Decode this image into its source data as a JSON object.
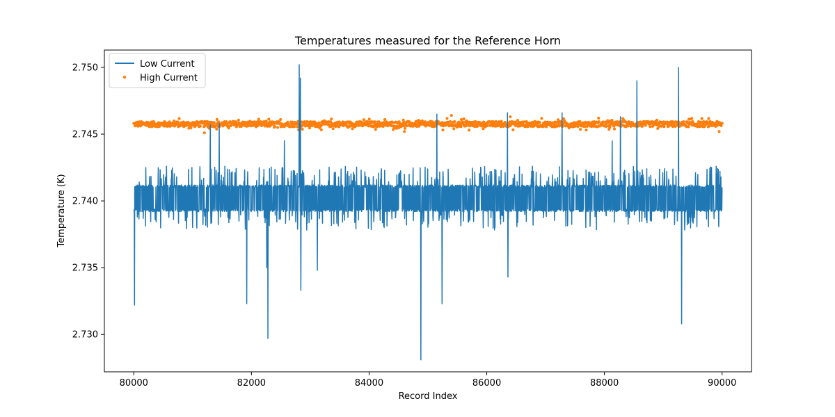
{
  "chart_data": {
    "type": "line",
    "title": "Temperatures measured for the Reference Horn",
    "xlabel": "Record Index",
    "ylabel": "Temperature (K)",
    "xlim": [
      79500,
      90500
    ],
    "ylim": [
      2.7272,
      2.7513
    ],
    "x_ticks": [
      80000,
      82000,
      84000,
      86000,
      88000,
      90000
    ],
    "x_tick_labels": [
      "80000",
      "82000",
      "84000",
      "86000",
      "88000",
      "90000"
    ],
    "y_ticks": [
      2.73,
      2.735,
      2.74,
      2.745,
      2.75
    ],
    "y_tick_labels": [
      "2.730",
      "2.735",
      "2.740",
      "2.745",
      "2.750"
    ],
    "legend_position": "top-left",
    "series": [
      {
        "name": "Low Current",
        "kind": "line",
        "color": "#1f77b4",
        "x_range": [
          80000,
          90000
        ],
        "band_upper": 2.7412,
        "band_lower": 2.7392,
        "base": 2.7402,
        "spikes": [
          {
            "x": 80010,
            "y": 2.7322
          },
          {
            "x": 80020,
            "y": 2.741
          },
          {
            "x": 81300,
            "y": 2.7457
          },
          {
            "x": 81450,
            "y": 2.7458
          },
          {
            "x": 81920,
            "y": 2.7323
          },
          {
            "x": 82260,
            "y": 2.735
          },
          {
            "x": 82280,
            "y": 2.7297
          },
          {
            "x": 82560,
            "y": 2.7445
          },
          {
            "x": 82810,
            "y": 2.7502
          },
          {
            "x": 82830,
            "y": 2.7492
          },
          {
            "x": 82840,
            "y": 2.7333
          },
          {
            "x": 83120,
            "y": 2.7348
          },
          {
            "x": 84880,
            "y": 2.7281
          },
          {
            "x": 85150,
            "y": 2.7465
          },
          {
            "x": 85240,
            "y": 2.7323
          },
          {
            "x": 86350,
            "y": 2.7466
          },
          {
            "x": 86360,
            "y": 2.7343
          },
          {
            "x": 87280,
            "y": 2.7466
          },
          {
            "x": 88130,
            "y": 2.7445
          },
          {
            "x": 88270,
            "y": 2.7463
          },
          {
            "x": 88550,
            "y": 2.749
          },
          {
            "x": 89260,
            "y": 2.75
          },
          {
            "x": 89310,
            "y": 2.7308
          }
        ]
      },
      {
        "name": "High Current",
        "kind": "scatter",
        "color": "#ff7f0e",
        "x_range": [
          80000,
          90000
        ],
        "base": 2.74575,
        "spread": 0.0002,
        "outliers": [
          {
            "x": 81200,
            "y": 2.7451
          },
          {
            "x": 84600,
            "y": 2.7452
          },
          {
            "x": 85700,
            "y": 2.7453
          },
          {
            "x": 85400,
            "y": 2.7464
          },
          {
            "x": 86400,
            "y": 2.7463
          },
          {
            "x": 87900,
            "y": 2.7462
          },
          {
            "x": 89950,
            "y": 2.7452
          }
        ]
      }
    ]
  }
}
